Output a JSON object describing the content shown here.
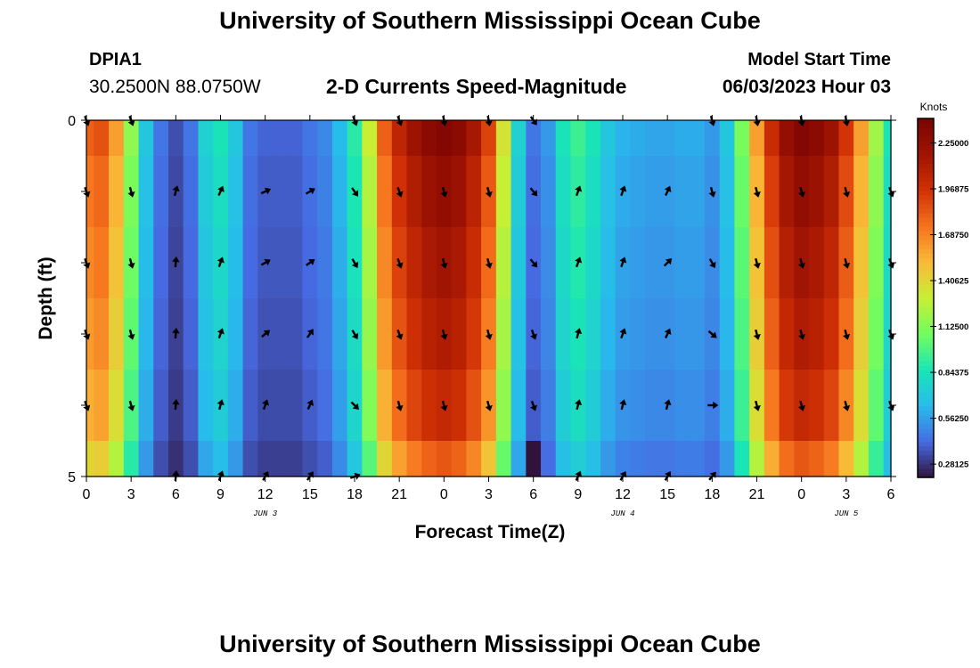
{
  "header": {
    "title": "University of Southern Mississippi Ocean Cube",
    "station_name": "DPIA1",
    "station_coords": "30.2500N  88.0750W",
    "chart_title": "2-D Currents Speed-Magnitude",
    "model_start_label": "Model Start Time",
    "model_start_value": "06/03/2023 Hour 03"
  },
  "footer": {
    "title": "University of Southern Mississippi Ocean Cube"
  },
  "chart_data": {
    "type": "heatmap",
    "title": "2-D Currents Speed-Magnitude",
    "xlabel": "Forecast Time(Z)",
    "ylabel": "Depth (ft)",
    "units_label": "Knots",
    "x_tick_labels": [
      "0",
      "3",
      "6",
      "9",
      "12",
      "15",
      "18",
      "21",
      "0",
      "3",
      "6",
      "9",
      "12",
      "15",
      "18",
      "21",
      "0",
      "3",
      "6"
    ],
    "date_labels": [
      {
        "label": "JUN 3",
        "hour": 12
      },
      {
        "label": "JUN 4",
        "hour": 36
      },
      {
        "label": "JUN 5",
        "hour": 51
      }
    ],
    "x_range_hours": [
      0,
      54
    ],
    "y_tick_labels": [
      "0",
      "5"
    ],
    "ylim": [
      0,
      5
    ],
    "depth_bins": 5,
    "colorbar_ticks": [
      "2.25000",
      "1.96875",
      "1.68750",
      "1.40625",
      "1.12500",
      "0.84375",
      "0.56250",
      "0.28125"
    ],
    "colorbar_values": [
      2.25,
      1.96875,
      1.6875,
      1.40625,
      1.125,
      0.84375,
      0.5625,
      0.28125
    ],
    "color_range": [
      0.2,
      2.4
    ],
    "surface_speed_profile": [
      {
        "hour": 0,
        "speed": 1.8
      },
      {
        "hour": 1,
        "speed": 1.85
      },
      {
        "hour": 2,
        "speed": 1.6
      },
      {
        "hour": 3,
        "speed": 1.15
      },
      {
        "hour": 4,
        "speed": 0.7
      },
      {
        "hour": 5,
        "speed": 0.45
      },
      {
        "hour": 6,
        "speed": 0.35
      },
      {
        "hour": 7,
        "speed": 0.45
      },
      {
        "hour": 8,
        "speed": 0.75
      },
      {
        "hour": 9,
        "speed": 0.85
      },
      {
        "hour": 10,
        "speed": 0.7
      },
      {
        "hour": 11,
        "speed": 0.45
      },
      {
        "hour": 12,
        "speed": 0.4
      },
      {
        "hour": 13,
        "speed": 0.4
      },
      {
        "hour": 14,
        "speed": 0.4
      },
      {
        "hour": 15,
        "speed": 0.45
      },
      {
        "hour": 16,
        "speed": 0.5
      },
      {
        "hour": 17,
        "speed": 0.65
      },
      {
        "hour": 18,
        "speed": 0.9
      },
      {
        "hour": 19,
        "speed": 1.3
      },
      {
        "hour": 20,
        "speed": 1.8
      },
      {
        "hour": 21,
        "speed": 2.05
      },
      {
        "hour": 22,
        "speed": 2.2
      },
      {
        "hour": 23,
        "speed": 2.3
      },
      {
        "hour": 24,
        "speed": 2.35
      },
      {
        "hour": 25,
        "speed": 2.3
      },
      {
        "hour": 26,
        "speed": 2.15
      },
      {
        "hour": 27,
        "speed": 1.9
      },
      {
        "hour": 28,
        "speed": 1.35
      },
      {
        "hour": 29,
        "speed": 0.75
      },
      {
        "hour": 30,
        "speed": 0.45
      },
      {
        "hour": 31,
        "speed": 0.55
      },
      {
        "hour": 32,
        "speed": 0.85
      },
      {
        "hour": 33,
        "speed": 0.95
      },
      {
        "hour": 34,
        "speed": 0.85
      },
      {
        "hour": 35,
        "speed": 0.7
      },
      {
        "hour": 36,
        "speed": 0.62
      },
      {
        "hour": 37,
        "speed": 0.6
      },
      {
        "hour": 38,
        "speed": 0.58
      },
      {
        "hour": 39,
        "speed": 0.58
      },
      {
        "hour": 40,
        "speed": 0.6
      },
      {
        "hour": 41,
        "speed": 0.6
      },
      {
        "hour": 42,
        "speed": 0.55
      },
      {
        "hour": 43,
        "speed": 0.7
      },
      {
        "hour": 44,
        "speed": 1.1
      },
      {
        "hour": 45,
        "speed": 1.6
      },
      {
        "hour": 46,
        "speed": 2.0
      },
      {
        "hour": 47,
        "speed": 2.25
      },
      {
        "hour": 48,
        "speed": 2.35
      },
      {
        "hour": 49,
        "speed": 2.3
      },
      {
        "hour": 50,
        "speed": 2.2
      },
      {
        "hour": 51,
        "speed": 1.95
      },
      {
        "hour": 52,
        "speed": 1.6
      },
      {
        "hour": 53,
        "speed": 1.2
      },
      {
        "hour": 54,
        "speed": 0.85
      }
    ],
    "depth_factors": [
      1.0,
      0.96,
      0.93,
      0.9,
      0.86,
      0.78
    ],
    "special_cell": {
      "hour": 30,
      "depth_bin": 5,
      "speed": 0.2
    },
    "vectors": [
      {
        "depth_bin": 0,
        "arrows": [
          {
            "hour": 0,
            "angle": 160
          },
          {
            "hour": 3,
            "angle": 160
          },
          {
            "hour": 18,
            "angle": 160
          },
          {
            "hour": 21,
            "angle": 160
          },
          {
            "hour": 24,
            "angle": 170
          },
          {
            "hour": 27,
            "angle": 170
          },
          {
            "hour": 30,
            "angle": 145
          },
          {
            "hour": 42,
            "angle": 165
          },
          {
            "hour": 45,
            "angle": 170
          },
          {
            "hour": 48,
            "angle": 170
          },
          {
            "hour": 51,
            "angle": 170
          }
        ]
      },
      {
        "depth_bin": 1,
        "arrows": [
          {
            "hour": 0,
            "angle": 160
          },
          {
            "hour": 3,
            "angle": 165
          },
          {
            "hour": 6,
            "angle": 15
          },
          {
            "hour": 9,
            "angle": 25
          },
          {
            "hour": 12,
            "angle": 65
          },
          {
            "hour": 15,
            "angle": 60
          },
          {
            "hour": 18,
            "angle": 145
          },
          {
            "hour": 21,
            "angle": 160
          },
          {
            "hour": 24,
            "angle": 165
          },
          {
            "hour": 27,
            "angle": 165
          },
          {
            "hour": 30,
            "angle": 140
          },
          {
            "hour": 33,
            "angle": 20
          },
          {
            "hour": 36,
            "angle": 20
          },
          {
            "hour": 39,
            "angle": 25
          },
          {
            "hour": 42,
            "angle": 165
          },
          {
            "hour": 45,
            "angle": 165
          },
          {
            "hour": 48,
            "angle": 165
          },
          {
            "hour": 51,
            "angle": 165
          },
          {
            "hour": 54,
            "angle": 160
          }
        ]
      },
      {
        "depth_bin": 2,
        "arrows": [
          {
            "hour": 0,
            "angle": 160
          },
          {
            "hour": 3,
            "angle": 165
          },
          {
            "hour": 6,
            "angle": 5
          },
          {
            "hour": 9,
            "angle": 20
          },
          {
            "hour": 12,
            "angle": 60
          },
          {
            "hour": 15,
            "angle": 55
          },
          {
            "hour": 18,
            "angle": 150
          },
          {
            "hour": 21,
            "angle": 160
          },
          {
            "hour": 24,
            "angle": 165
          },
          {
            "hour": 27,
            "angle": 165
          },
          {
            "hour": 30,
            "angle": 140
          },
          {
            "hour": 33,
            "angle": 20
          },
          {
            "hour": 36,
            "angle": 20
          },
          {
            "hour": 39,
            "angle": 45
          },
          {
            "hour": 42,
            "angle": 150
          },
          {
            "hour": 45,
            "angle": 165
          },
          {
            "hour": 48,
            "angle": 165
          },
          {
            "hour": 51,
            "angle": 165
          },
          {
            "hour": 54,
            "angle": 160
          }
        ]
      },
      {
        "depth_bin": 3,
        "arrows": [
          {
            "hour": 0,
            "angle": 160
          },
          {
            "hour": 3,
            "angle": 165
          },
          {
            "hour": 6,
            "angle": 5
          },
          {
            "hour": 9,
            "angle": 20
          },
          {
            "hour": 12,
            "angle": 50
          },
          {
            "hour": 15,
            "angle": 35
          },
          {
            "hour": 18,
            "angle": 150
          },
          {
            "hour": 21,
            "angle": 160
          },
          {
            "hour": 24,
            "angle": 165
          },
          {
            "hour": 27,
            "angle": 165
          },
          {
            "hour": 30,
            "angle": 160
          },
          {
            "hour": 33,
            "angle": 15
          },
          {
            "hour": 36,
            "angle": 20
          },
          {
            "hour": 39,
            "angle": 25
          },
          {
            "hour": 42,
            "angle": 130
          },
          {
            "hour": 45,
            "angle": 165
          },
          {
            "hour": 48,
            "angle": 165
          },
          {
            "hour": 51,
            "angle": 165
          },
          {
            "hour": 54,
            "angle": 160
          }
        ]
      },
      {
        "depth_bin": 4,
        "arrows": [
          {
            "hour": 0,
            "angle": 160
          },
          {
            "hour": 3,
            "angle": 165
          },
          {
            "hour": 6,
            "angle": 5
          },
          {
            "hour": 9,
            "angle": 15
          },
          {
            "hour": 12,
            "angle": 20
          },
          {
            "hour": 15,
            "angle": 25
          },
          {
            "hour": 18,
            "angle": 135
          },
          {
            "hour": 21,
            "angle": 165
          },
          {
            "hour": 24,
            "angle": 165
          },
          {
            "hour": 27,
            "angle": 165
          },
          {
            "hour": 30,
            "angle": 160
          },
          {
            "hour": 33,
            "angle": 15
          },
          {
            "hour": 36,
            "angle": 15
          },
          {
            "hour": 39,
            "angle": 15
          },
          {
            "hour": 42,
            "angle": 90
          },
          {
            "hour": 45,
            "angle": 165
          },
          {
            "hour": 48,
            "angle": 165
          },
          {
            "hour": 51,
            "angle": 165
          },
          {
            "hour": 54,
            "angle": 160
          }
        ]
      },
      {
        "depth_bin": 5,
        "arrows": [
          {
            "hour": 6,
            "angle": 5
          },
          {
            "hour": 9,
            "angle": 20
          },
          {
            "hour": 12,
            "angle": 30
          },
          {
            "hour": 15,
            "angle": 35
          },
          {
            "hour": 18,
            "angle": 70
          },
          {
            "hour": 33,
            "angle": 25
          },
          {
            "hour": 36,
            "angle": 30
          },
          {
            "hour": 39,
            "angle": 30
          },
          {
            "hour": 42,
            "angle": 40
          }
        ]
      }
    ]
  }
}
